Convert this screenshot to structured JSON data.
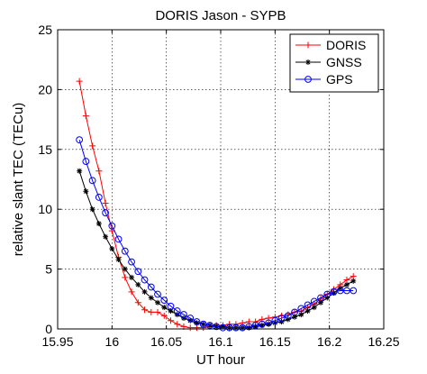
{
  "chart_data": {
    "type": "line",
    "title": "DORIS Jason - SYPB",
    "xlabel": "UT hour",
    "ylabel": "relative slant TEC (TECu)",
    "xlim": [
      15.95,
      16.25
    ],
    "ylim": [
      0,
      25
    ],
    "xticks": [
      "15.95",
      "16",
      "16.05",
      "16.1",
      "16.15",
      "16.2",
      "16.25"
    ],
    "yticks": [
      "0",
      "5",
      "10",
      "15",
      "20",
      "25"
    ],
    "grid": true,
    "legend_position": "top-right",
    "series": [
      {
        "name": "DORIS",
        "color": "#ff0000",
        "marker": "plus",
        "x": [
          15.97,
          15.976,
          15.982,
          15.988,
          15.994,
          16.0,
          16.006,
          16.012,
          16.018,
          16.024,
          16.03,
          16.036,
          16.042,
          16.048,
          16.054,
          16.06,
          16.066,
          16.072,
          16.078,
          16.084,
          16.09,
          16.096,
          16.102,
          16.108,
          16.114,
          16.12,
          16.126,
          16.132,
          16.138,
          16.144,
          16.15,
          16.156,
          16.162,
          16.168,
          16.174,
          16.18,
          16.186,
          16.192,
          16.198,
          16.204,
          16.21,
          16.216,
          16.222
        ],
        "y": [
          20.7,
          17.8,
          15.3,
          13.2,
          10.5,
          8.2,
          6.0,
          4.3,
          3.1,
          2.2,
          1.6,
          1.4,
          1.4,
          1.1,
          0.7,
          0.4,
          0.2,
          0.1,
          0.1,
          0.1,
          0.2,
          0.3,
          0.3,
          0.4,
          0.4,
          0.5,
          0.6,
          0.6,
          0.8,
          0.9,
          1.0,
          1.1,
          1.2,
          1.4,
          1.5,
          1.8,
          2.1,
          2.5,
          2.9,
          3.3,
          3.7,
          4.1,
          4.4
        ]
      },
      {
        "name": "GNSS",
        "color": "#000000",
        "marker": "star",
        "x": [
          15.97,
          15.976,
          15.982,
          15.988,
          15.994,
          16.0,
          16.006,
          16.012,
          16.018,
          16.024,
          16.03,
          16.036,
          16.042,
          16.048,
          16.054,
          16.06,
          16.066,
          16.072,
          16.078,
          16.084,
          16.09,
          16.096,
          16.102,
          16.108,
          16.114,
          16.12,
          16.126,
          16.132,
          16.138,
          16.144,
          16.15,
          16.156,
          16.162,
          16.168,
          16.174,
          16.18,
          16.186,
          16.192,
          16.198,
          16.204,
          16.21,
          16.216,
          16.222
        ],
        "y": [
          13.2,
          11.5,
          10.0,
          8.8,
          7.7,
          6.7,
          5.8,
          5.0,
          4.3,
          3.7,
          3.1,
          2.6,
          2.2,
          1.8,
          1.5,
          1.2,
          0.9,
          0.7,
          0.5,
          0.4,
          0.3,
          0.2,
          0.2,
          0.1,
          0.1,
          0.1,
          0.1,
          0.2,
          0.3,
          0.4,
          0.5,
          0.6,
          0.8,
          1.0,
          1.2,
          1.5,
          1.8,
          2.2,
          2.6,
          3.0,
          3.4,
          3.7,
          4.0
        ]
      },
      {
        "name": "GPS",
        "color": "#0000ff",
        "marker": "circle",
        "x": [
          15.97,
          15.976,
          15.982,
          15.988,
          15.994,
          16.0,
          16.006,
          16.012,
          16.018,
          16.024,
          16.03,
          16.036,
          16.042,
          16.048,
          16.054,
          16.06,
          16.066,
          16.072,
          16.078,
          16.084,
          16.09,
          16.096,
          16.102,
          16.108,
          16.114,
          16.12,
          16.126,
          16.132,
          16.138,
          16.144,
          16.15,
          16.156,
          16.162,
          16.168,
          16.174,
          16.18,
          16.186,
          16.192,
          16.198,
          16.204,
          16.21,
          16.216,
          16.222
        ],
        "y": [
          15.8,
          14.0,
          12.4,
          11.0,
          9.7,
          8.6,
          7.5,
          6.5,
          5.6,
          4.8,
          4.1,
          3.5,
          2.9,
          2.4,
          1.9,
          1.5,
          1.2,
          0.9,
          0.6,
          0.4,
          0.3,
          0.2,
          0.1,
          0.1,
          0.1,
          0.1,
          0.2,
          0.3,
          0.4,
          0.5,
          0.7,
          0.9,
          1.1,
          1.4,
          1.7,
          2.0,
          2.3,
          2.6,
          2.9,
          3.1,
          3.2,
          3.2,
          3.2
        ]
      }
    ]
  }
}
